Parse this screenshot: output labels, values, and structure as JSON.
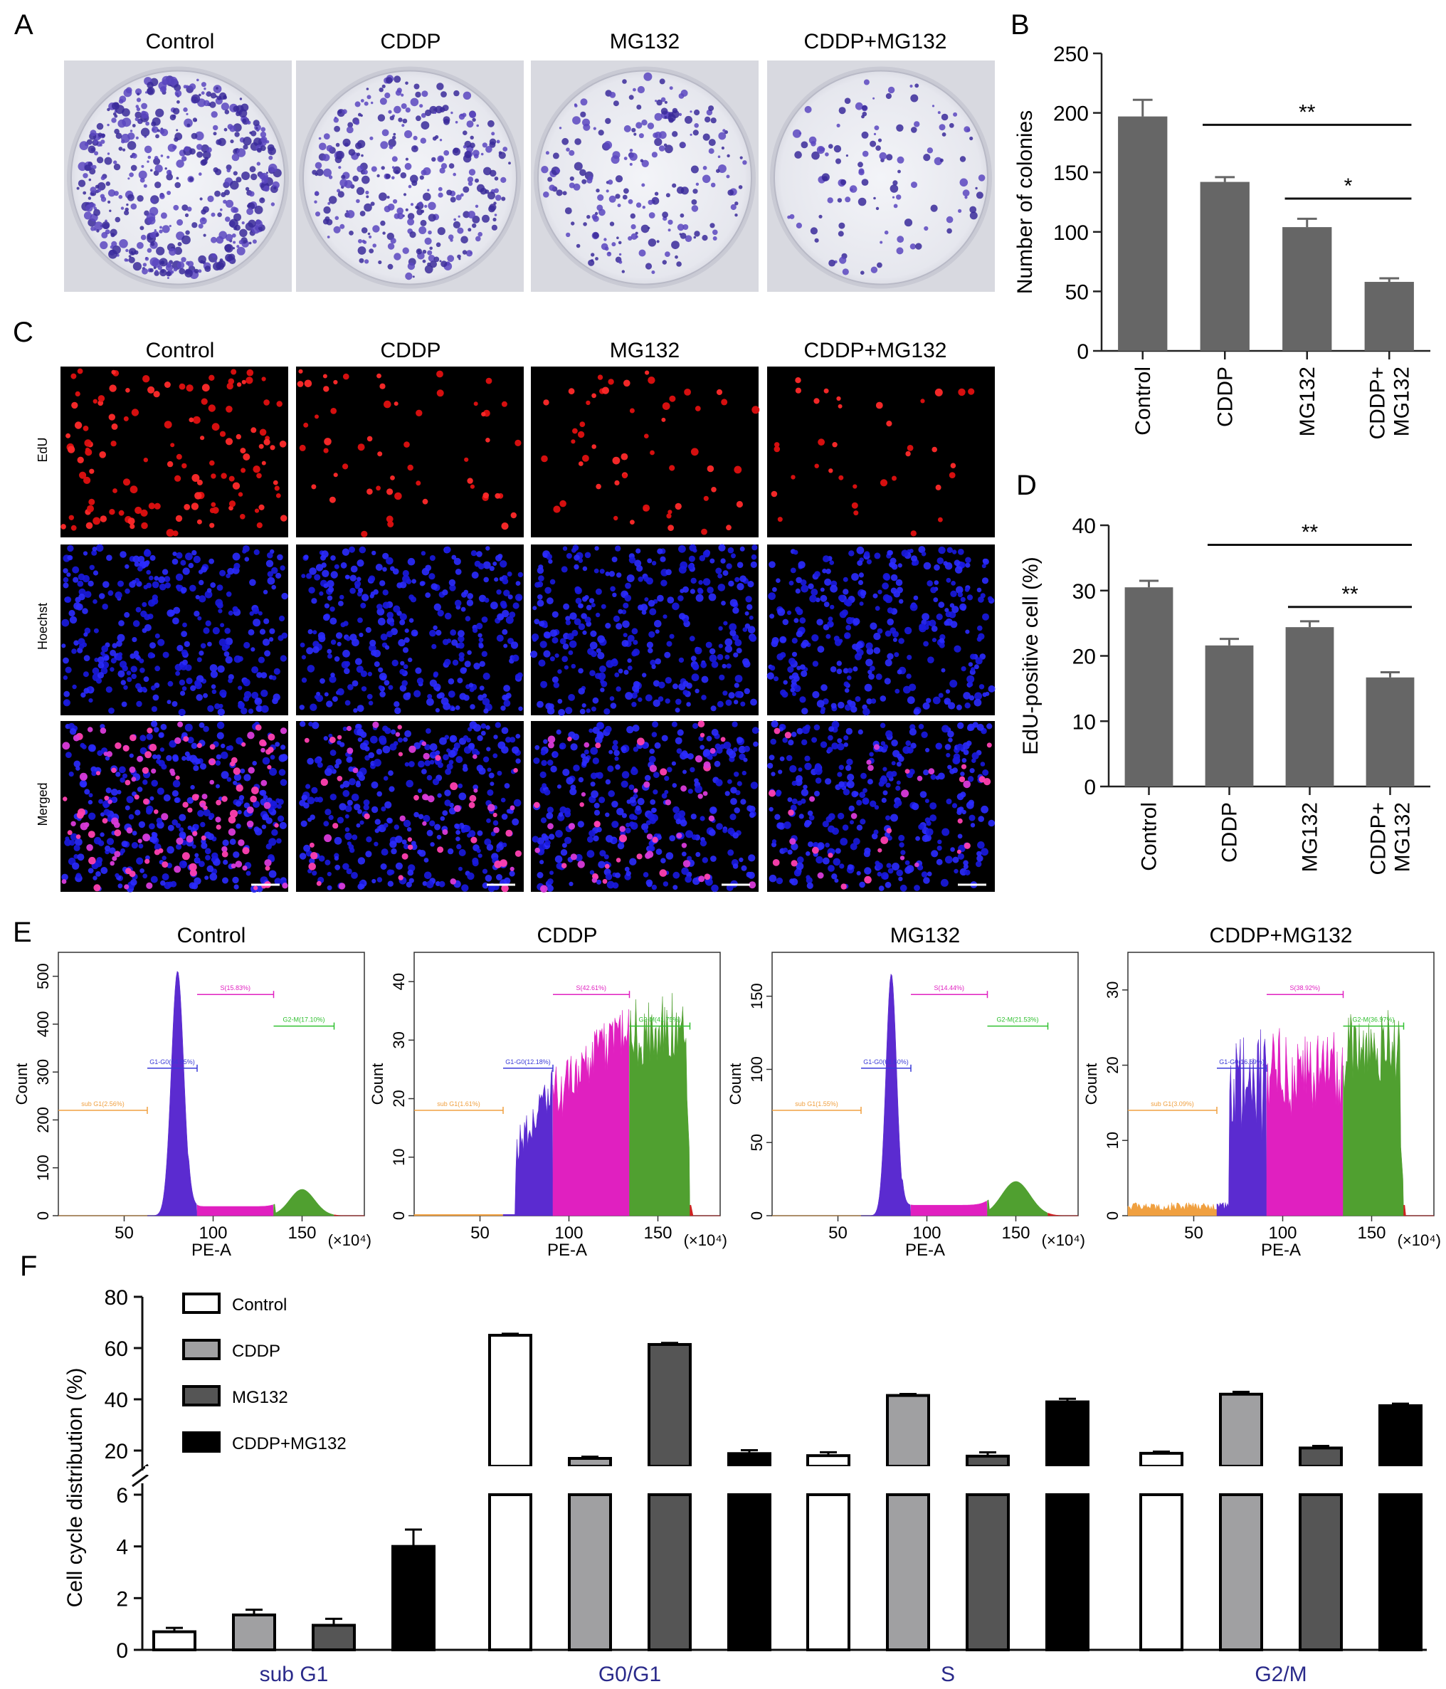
{
  "panels": {
    "A": {
      "letter": "A",
      "columns": [
        "Control",
        "CDDP",
        "MG132",
        "CDDP+MG132"
      ]
    },
    "C": {
      "letter": "C",
      "columns": [
        "Control",
        "CDDP",
        "MG132",
        "CDDP+MG132"
      ],
      "rows": [
        "EdU",
        "Hoechst",
        "Merged"
      ]
    },
    "E": {
      "letter": "E"
    },
    "F": {
      "letter": "F"
    }
  },
  "chart_data": [
    {
      "panel": "B",
      "letter": "B",
      "type": "bar",
      "categories": [
        "Control",
        "CDDP",
        "MG132",
        [
          "CDDP+",
          "MG132"
        ]
      ],
      "values": [
        197,
        142,
        104,
        58
      ],
      "errors": [
        14,
        4,
        7,
        3
      ],
      "ylabel": "Number of colonies",
      "ylim": [
        0,
        250
      ],
      "yticks": [
        0,
        50,
        100,
        150,
        200,
        250
      ],
      "bar_color": "#666666",
      "significance": [
        {
          "from": 1,
          "to": 3,
          "label": "**",
          "y": 190
        },
        {
          "from": 2,
          "to": 3,
          "label": "*",
          "y": 128
        }
      ]
    },
    {
      "panel": "D",
      "letter": "D",
      "type": "bar",
      "categories": [
        "Control",
        "CDDP",
        "MG132",
        [
          "CDDP+",
          "MG132"
        ]
      ],
      "values": [
        30.5,
        21.6,
        24.4,
        16.7
      ],
      "errors": [
        1.0,
        1.0,
        0.9,
        0.8
      ],
      "ylabel": "EdU-positive cell (%)",
      "ylim": [
        0,
        40
      ],
      "yticks": [
        0,
        10,
        20,
        30,
        40
      ],
      "bar_color": "#666666",
      "significance": [
        {
          "from": 1,
          "to": 3,
          "label": "**",
          "y": 37
        },
        {
          "from": 2,
          "to": 3,
          "label": "**",
          "y": 27.5
        }
      ]
    },
    {
      "panel": "E",
      "type": "area",
      "xlabel": "PE-A",
      "x_unit": "(×10⁴)",
      "ylabel": "Count",
      "xticks": [
        50,
        100,
        150
      ],
      "histograms": [
        {
          "title": "Control",
          "ylim": [
            0,
            550
          ],
          "yticks": [
            0,
            100,
            200,
            300,
            400,
            500
          ],
          "gates": {
            "subG1": "sub G1(2.56%)",
            "g1": "G1-G0(64.85%)",
            "s": "S(15.83%)",
            "g2": "G2-M(17.10%)"
          }
        },
        {
          "title": "CDDP",
          "ylim": [
            0,
            45
          ],
          "yticks": [
            0,
            10,
            20,
            30,
            40
          ],
          "gates": {
            "subG1": "sub G1(1.61%)",
            "g1": "G1-G0(12.18%)",
            "s": "S(42.61%)",
            "g2": "G2-M(41.75%)"
          }
        },
        {
          "title": "MG132",
          "ylim": [
            0,
            180
          ],
          "yticks": [
            0,
            50,
            100,
            150
          ],
          "gates": {
            "subG1": "sub G1(1.55%)",
            "g1": "G1-G0(61.60%)",
            "s": "S(14.44%)",
            "g2": "G2-M(21.53%)"
          }
        },
        {
          "title": "CDDP+MG132",
          "ylim": [
            0,
            35
          ],
          "yticks": [
            0,
            10,
            20,
            30
          ],
          "gates": {
            "subG1": "sub G1(3.09%)",
            "g1": "G1-G0(16.69%)",
            "s": "S(38.92%)",
            "g2": "G2-M(36.97%)"
          }
        }
      ]
    },
    {
      "panel": "F",
      "type": "bar",
      "categories": [
        "sub G1",
        "G0/G1",
        "S",
        "G2/M"
      ],
      "ylabel": "Cell cycle distribution (%)",
      "lower_yticks": [
        0,
        2,
        4,
        6
      ],
      "upper_yticks": [
        20,
        40,
        60,
        80
      ],
      "series": [
        {
          "name": "Control",
          "values": [
            0.7,
            65,
            15,
            17.3
          ],
          "errors": [
            0.15,
            0.6,
            0.8,
            0.4
          ],
          "color": "#ffffff"
        },
        {
          "name": "CDDP",
          "values": [
            1.35,
            12.3,
            41.5,
            42
          ],
          "errors": [
            0.2,
            0.4,
            0.6,
            0.9
          ],
          "color": "#a0a0a2"
        },
        {
          "name": "MG132",
          "values": [
            0.95,
            61.4,
            14.5,
            21
          ],
          "errors": [
            0.25,
            0.6,
            0.9,
            0.8
          ],
          "color": "#555555"
        },
        {
          "name": "CDDP+MG132",
          "values": [
            4.0,
            17,
            39,
            37.5
          ],
          "errors": [
            0.65,
            0.8,
            1.2,
            0.8
          ],
          "color": "#000000"
        }
      ]
    }
  ]
}
